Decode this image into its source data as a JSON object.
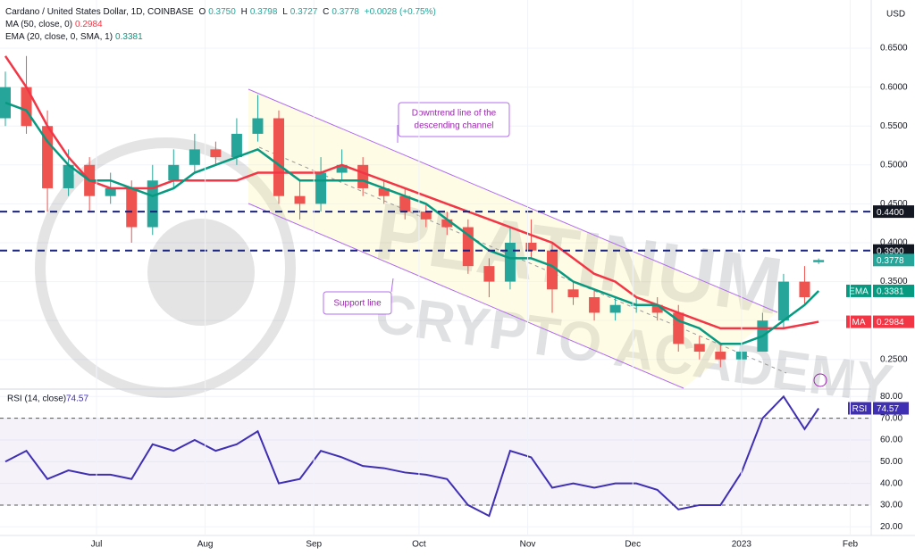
{
  "header": {
    "symbol": "Cardano / United States Dollar, 1D, COINBASE",
    "ohlc": [
      [
        "O",
        "0.3750"
      ],
      [
        "H",
        "0.3798"
      ],
      [
        "L",
        "0.3727"
      ],
      [
        "C",
        "0.3778"
      ]
    ],
    "change": "+0.0028 (+0.75%)",
    "indicators": [
      [
        "MA (50, close, 0)",
        "0.2984"
      ],
      [
        "EMA (20, close, 0, SMA, 1)",
        "0.3381"
      ]
    ],
    "currency": "USD"
  },
  "watermark": [
    "PLATINUM",
    "CRYPTO ACADEMY"
  ],
  "annotations": [
    {
      "lines": [
        "Downtrend line of the",
        "descending channel"
      ]
    },
    {
      "lines": [
        "Support line"
      ]
    }
  ],
  "chart_data": [
    {
      "type": "candlestick",
      "x": [
        0,
        6,
        12,
        18,
        24,
        30,
        36,
        42,
        48,
        54,
        60,
        66,
        72,
        78,
        84,
        90,
        96,
        102,
        108,
        114,
        120,
        126,
        132,
        138,
        144,
        150,
        156,
        162,
        168,
        174,
        180,
        186,
        192,
        198,
        204,
        210,
        216,
        222,
        228,
        232
      ],
      "open": [
        0.56,
        0.6,
        0.55,
        0.47,
        0.5,
        0.46,
        0.47,
        0.42,
        0.48,
        0.5,
        0.52,
        0.51,
        0.54,
        0.56,
        0.46,
        0.45,
        0.49,
        0.5,
        0.47,
        0.46,
        0.44,
        0.43,
        0.42,
        0.37,
        0.35,
        0.4,
        0.39,
        0.34,
        0.33,
        0.31,
        0.32,
        0.32,
        0.31,
        0.27,
        0.26,
        0.25,
        0.26,
        0.3,
        0.35,
        0.375
      ],
      "high": [
        0.62,
        0.64,
        0.57,
        0.52,
        0.51,
        0.49,
        0.48,
        0.5,
        0.52,
        0.54,
        0.53,
        0.56,
        0.59,
        0.57,
        0.48,
        0.51,
        0.52,
        0.51,
        0.48,
        0.47,
        0.45,
        0.44,
        0.43,
        0.38,
        0.42,
        0.43,
        0.4,
        0.35,
        0.34,
        0.33,
        0.33,
        0.33,
        0.32,
        0.28,
        0.27,
        0.27,
        0.31,
        0.36,
        0.37,
        0.3798
      ],
      "low": [
        0.55,
        0.54,
        0.44,
        0.46,
        0.44,
        0.45,
        0.4,
        0.41,
        0.47,
        0.49,
        0.5,
        0.5,
        0.53,
        0.45,
        0.43,
        0.44,
        0.48,
        0.46,
        0.45,
        0.43,
        0.42,
        0.41,
        0.36,
        0.33,
        0.34,
        0.38,
        0.31,
        0.32,
        0.3,
        0.3,
        0.31,
        0.3,
        0.26,
        0.25,
        0.24,
        0.25,
        0.26,
        0.29,
        0.32,
        0.3727
      ],
      "close": [
        0.6,
        0.55,
        0.47,
        0.5,
        0.46,
        0.47,
        0.42,
        0.48,
        0.5,
        0.52,
        0.51,
        0.54,
        0.56,
        0.46,
        0.45,
        0.49,
        0.5,
        0.47,
        0.46,
        0.44,
        0.43,
        0.42,
        0.37,
        0.35,
        0.4,
        0.39,
        0.34,
        0.33,
        0.31,
        0.32,
        0.32,
        0.31,
        0.27,
        0.26,
        0.25,
        0.26,
        0.3,
        0.35,
        0.33,
        0.3778
      ],
      "up_color": "#26a69a",
      "down_color": "#ef5350",
      "series": [
        {
          "name": "MA",
          "color": "#f23645",
          "values": [
            0.64,
            0.6,
            0.55,
            0.51,
            0.48,
            0.47,
            0.47,
            0.47,
            0.48,
            0.48,
            0.48,
            0.48,
            0.49,
            0.49,
            0.49,
            0.49,
            0.5,
            0.49,
            0.48,
            0.47,
            0.46,
            0.45,
            0.44,
            0.43,
            0.42,
            0.41,
            0.4,
            0.38,
            0.36,
            0.35,
            0.33,
            0.32,
            0.31,
            0.3,
            0.29,
            0.29,
            0.29,
            0.29,
            0.295,
            0.2984
          ]
        },
        {
          "name": "EMA",
          "color": "#089981",
          "values": [
            0.58,
            0.57,
            0.53,
            0.5,
            0.48,
            0.48,
            0.47,
            0.46,
            0.47,
            0.49,
            0.5,
            0.51,
            0.52,
            0.5,
            0.48,
            0.48,
            0.48,
            0.48,
            0.47,
            0.46,
            0.45,
            0.43,
            0.41,
            0.39,
            0.38,
            0.38,
            0.37,
            0.35,
            0.34,
            0.33,
            0.32,
            0.32,
            0.3,
            0.29,
            0.27,
            0.27,
            0.28,
            0.3,
            0.32,
            0.3381
          ]
        }
      ],
      "levels": [
        {
          "value": 0.44,
          "label": "0.4400"
        },
        {
          "value": 0.39,
          "label": "0.3900"
        }
      ],
      "price_tags": [
        {
          "value": 0.3778,
          "label": "0.3778",
          "color": "#26a69a"
        },
        {
          "name": "EMA",
          "value": 0.3381,
          "label": "0.3381",
          "color": "#089981"
        },
        {
          "name": "MA",
          "value": 0.2984,
          "label": "0.2984",
          "color": "#f23645"
        }
      ],
      "xlim": [
        0,
        247
      ],
      "ylim": [
        0.213,
        0.712
      ],
      "yticks": [
        {
          "value": 0.25,
          "label": "0.2500"
        },
        {
          "value": 0.3,
          "label": "0.3000"
        },
        {
          "value": 0.35,
          "label": "0.3500"
        },
        {
          "value": 0.4,
          "label": "0.4000"
        },
        {
          "value": 0.45,
          "label": "0.4500"
        },
        {
          "value": 0.5,
          "label": "0.5000"
        },
        {
          "value": 0.55,
          "label": "0.5500"
        },
        {
          "value": 0.6,
          "label": "0.6000"
        },
        {
          "value": 0.65,
          "label": "0.6500"
        }
      ]
    },
    {
      "type": "line",
      "title": "RSI (14, close)",
      "x": [
        0,
        6,
        12,
        18,
        24,
        30,
        36,
        42,
        48,
        54,
        60,
        66,
        72,
        78,
        84,
        90,
        96,
        102,
        108,
        114,
        120,
        126,
        132,
        138,
        144,
        150,
        156,
        162,
        168,
        174,
        180,
        186,
        192,
        198,
        204,
        210,
        216,
        222,
        228,
        232
      ],
      "series": [
        {
          "name": "RSI",
          "color": "#3f2fb3",
          "values": [
            50,
            55,
            42,
            46,
            44,
            44,
            42,
            58,
            55,
            60,
            55,
            58,
            64,
            40,
            42,
            55,
            52,
            48,
            47,
            45,
            44,
            42,
            30,
            25,
            55,
            52,
            38,
            40,
            38,
            40,
            40,
            37,
            28,
            30,
            30,
            45,
            70,
            80,
            65,
            74.57
          ],
          "value_labels": {
            "39": "74.57"
          }
        }
      ],
      "band": [
        30,
        70
      ],
      "xlim": [
        0,
        247
      ],
      "ylim": [
        16,
        83
      ],
      "yticks": [
        {
          "value": 20,
          "label": "20.00"
        },
        {
          "value": 30,
          "label": "30.00"
        },
        {
          "value": 40,
          "label": "40.00"
        },
        {
          "value": 50,
          "label": "50.00"
        },
        {
          "value": 60,
          "label": "60.00"
        },
        {
          "value": 70,
          "label": "70.00"
        },
        {
          "value": 80,
          "label": "80.00"
        }
      ],
      "xticks": [
        {
          "value": 26,
          "label": "Jul"
        },
        {
          "value": 57,
          "label": "Aug"
        },
        {
          "value": 88,
          "label": "Sep"
        },
        {
          "value": 118,
          "label": "Oct"
        },
        {
          "value": 149,
          "label": "Nov"
        },
        {
          "value": 179,
          "label": "Dec"
        },
        {
          "value": 210,
          "label": "2023"
        },
        {
          "value": 241,
          "label": "Feb"
        }
      ]
    }
  ]
}
